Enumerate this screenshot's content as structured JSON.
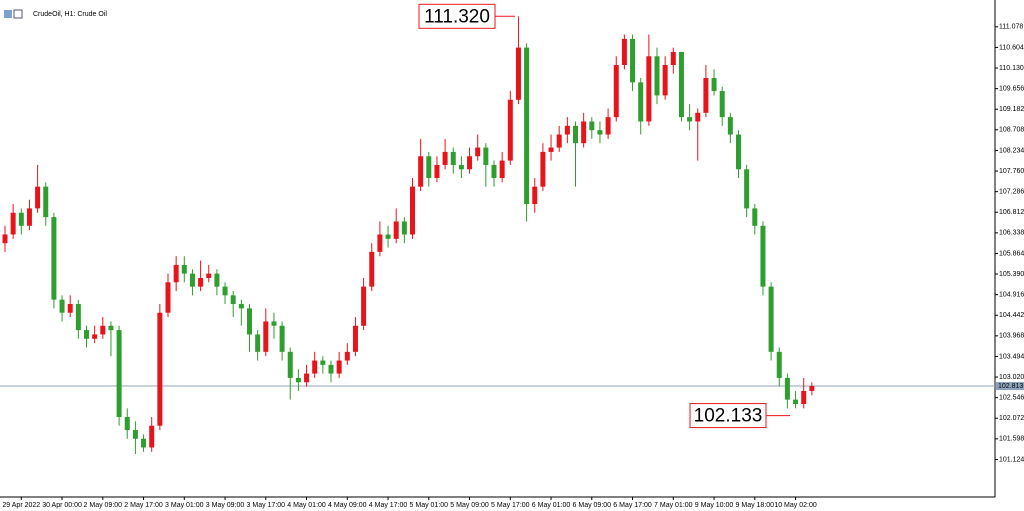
{
  "chart_data": {
    "type": "candlestick",
    "title": "CrudeOil, H1: Crude Oil",
    "up_color": "#e8141b",
    "down_color": "#2e9e2e",
    "categories": [
      null,
      null,
      "29 Apr 2022",
      null,
      null,
      null,
      null,
      "30 Apr 00:00",
      null,
      null,
      null,
      null,
      "2 May 09:00",
      null,
      null,
      null,
      null,
      "2 May 17:00",
      null,
      null,
      null,
      null,
      "3 May 01:00",
      null,
      null,
      null,
      null,
      "3 May 09:00",
      null,
      null,
      null,
      null,
      "3 May 17:00",
      null,
      null,
      null,
      null,
      "4 May 01:00",
      null,
      null,
      null,
      null,
      "4 May 09:00",
      null,
      null,
      null,
      null,
      "4 May 17:00",
      null,
      null,
      null,
      null,
      "5 May 01:00",
      null,
      null,
      null,
      null,
      "5 May 09:00",
      null,
      null,
      null,
      null,
      "5 May 17:00",
      null,
      null,
      null,
      null,
      "6 May 01:00",
      null,
      null,
      null,
      null,
      "6 May 09:00",
      null,
      null,
      null,
      null,
      "6 May 17:00",
      null,
      null,
      null,
      null,
      "7 May 01:00",
      null,
      null,
      null,
      null,
      "9 May 10:00",
      null,
      null,
      null,
      null,
      "9 May 18:00",
      null,
      null,
      null,
      null,
      "10 May 02:00",
      null,
      null
    ],
    "open": [
      106.1,
      106.3,
      106.8,
      106.5,
      106.9,
      107.4,
      106.7,
      104.8,
      104.5,
      104.7,
      104.1,
      103.9,
      104.0,
      104.2,
      104.1,
      102.1,
      101.8,
      101.6,
      101.4,
      101.9,
      104.5,
      105.2,
      105.6,
      105.4,
      105.1,
      105.3,
      105.4,
      105.1,
      104.9,
      104.7,
      104.6,
      104.0,
      103.6,
      104.3,
      104.2,
      103.6,
      103.0,
      102.9,
      103.1,
      103.4,
      103.3,
      103.1,
      103.4,
      103.6,
      104.2,
      105.1,
      105.9,
      106.3,
      106.2,
      106.6,
      106.3,
      107.4,
      108.1,
      107.6,
      107.9,
      108.2,
      107.9,
      107.8,
      108.1,
      108.3,
      107.9,
      107.6,
      108.0,
      109.4,
      110.6,
      107.0,
      107.4,
      108.2,
      108.3,
      108.6,
      108.8,
      108.4,
      108.9,
      108.7,
      108.6,
      109.0,
      110.2,
      110.8,
      109.8,
      108.9,
      110.4,
      109.5,
      110.2,
      110.5,
      109.0,
      108.9,
      109.1,
      109.9,
      109.6,
      109.0,
      108.6,
      107.8,
      106.9,
      106.5,
      105.1,
      103.6,
      103.0,
      102.5,
      102.4,
      102.7
    ],
    "high": [
      106.5,
      107.0,
      106.9,
      107.1,
      107.9,
      107.5,
      106.8,
      104.9,
      104.9,
      104.8,
      104.2,
      104.2,
      104.4,
      104.3,
      104.2,
      102.3,
      102.0,
      101.7,
      102.1,
      104.7,
      105.4,
      105.8,
      105.8,
      105.5,
      105.7,
      105.6,
      105.5,
      105.2,
      105.0,
      104.8,
      104.7,
      104.1,
      104.6,
      104.5,
      104.3,
      103.7,
      103.2,
      103.3,
      103.6,
      103.5,
      103.4,
      103.6,
      103.8,
      104.4,
      105.3,
      106.1,
      106.6,
      106.5,
      106.9,
      106.7,
      107.6,
      108.5,
      108.2,
      108.1,
      108.5,
      108.3,
      108.1,
      108.3,
      108.6,
      108.4,
      108.0,
      108.2,
      109.6,
      111.32,
      110.7,
      107.6,
      108.4,
      108.6,
      108.8,
      109.0,
      108.9,
      109.1,
      109.0,
      108.9,
      109.2,
      110.4,
      110.9,
      110.9,
      109.9,
      110.9,
      110.6,
      110.4,
      110.6,
      110.5,
      109.3,
      109.2,
      110.2,
      110.1,
      109.7,
      109.1,
      108.7,
      107.9,
      107.0,
      106.6,
      105.2,
      103.7,
      103.1,
      102.7,
      103.0,
      102.9
    ],
    "low": [
      105.9,
      106.2,
      106.3,
      106.4,
      106.8,
      106.5,
      104.6,
      104.3,
      104.4,
      103.9,
      103.7,
      103.8,
      103.9,
      103.5,
      101.9,
      101.6,
      101.25,
      101.3,
      101.3,
      101.8,
      104.4,
      105.0,
      105.2,
      104.9,
      105.0,
      105.2,
      104.9,
      104.7,
      104.4,
      104.2,
      103.6,
      103.4,
      103.5,
      103.9,
      103.4,
      102.5,
      102.7,
      102.8,
      103.0,
      103.1,
      102.9,
      103.0,
      103.3,
      103.5,
      104.1,
      105.0,
      105.8,
      106.0,
      106.1,
      106.1,
      106.2,
      107.3,
      107.4,
      107.5,
      107.8,
      107.7,
      107.6,
      107.7,
      108.0,
      107.4,
      107.4,
      107.5,
      107.9,
      109.3,
      106.6,
      106.8,
      107.3,
      108.0,
      108.2,
      108.4,
      107.4,
      108.3,
      108.5,
      108.4,
      108.5,
      108.9,
      110.1,
      109.6,
      108.6,
      108.8,
      109.3,
      109.4,
      110.0,
      108.9,
      108.7,
      108.0,
      109.0,
      109.5,
      108.8,
      108.4,
      107.6,
      106.7,
      106.3,
      104.9,
      103.4,
      102.8,
      102.3,
      102.3,
      102.3,
      102.6
    ],
    "close": [
      106.3,
      106.8,
      106.5,
      106.9,
      107.4,
      106.7,
      104.8,
      104.5,
      104.7,
      104.1,
      103.9,
      104.0,
      104.2,
      104.1,
      102.1,
      101.8,
      101.6,
      101.4,
      101.9,
      104.5,
      105.2,
      105.6,
      105.4,
      105.1,
      105.3,
      105.4,
      105.1,
      104.9,
      104.7,
      104.6,
      104.0,
      103.6,
      104.3,
      104.2,
      103.6,
      103.0,
      102.9,
      103.1,
      103.4,
      103.3,
      103.1,
      103.4,
      103.6,
      104.2,
      105.1,
      105.9,
      106.3,
      106.2,
      106.6,
      106.3,
      107.4,
      108.1,
      107.6,
      107.9,
      108.2,
      107.9,
      107.8,
      108.1,
      108.3,
      107.9,
      107.6,
      108.0,
      109.4,
      110.6,
      107.0,
      107.4,
      108.2,
      108.3,
      108.6,
      108.8,
      108.4,
      108.9,
      108.7,
      108.6,
      109.0,
      110.2,
      110.8,
      109.8,
      108.9,
      110.4,
      109.5,
      110.2,
      110.5,
      109.0,
      108.9,
      109.1,
      109.9,
      109.6,
      109.0,
      108.6,
      107.8,
      106.9,
      106.5,
      105.1,
      103.6,
      103.0,
      102.5,
      102.4,
      102.7,
      102.813
    ],
    "ylim": [
      100.26,
      111.58
    ],
    "yticks": [
      111.078,
      110.604,
      {
        "value": 110.13,
        "label": "110.130"
      },
      109.656,
      109.182,
      108.708,
      108.234,
      {
        "value": 107.76,
        "label": "107.760"
      },
      107.286,
      106.812,
      106.338,
      105.864,
      {
        "value": 105.39,
        "label": "105.390"
      },
      104.916,
      104.442,
      103.968,
      103.494,
      {
        "value": 103.02,
        "label": "103.020"
      },
      102.546,
      102.072,
      101.598,
      101.124
    ],
    "last_price": 102.813,
    "annotations": [
      {
        "value": 111.32,
        "label": "111.320"
      },
      {
        "value": 102.133,
        "label": "102.133"
      }
    ]
  }
}
